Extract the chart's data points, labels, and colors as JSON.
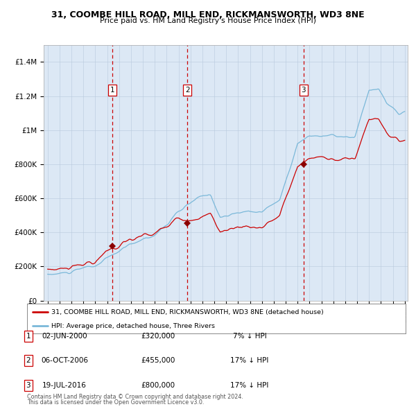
{
  "title1": "31, COOMBE HILL ROAD, MILL END, RICKMANSWORTH, WD3 8NE",
  "title2": "Price paid vs. HM Land Registry's House Price Index (HPI)",
  "legend1": "31, COOMBE HILL ROAD, MILL END, RICKMANSWORTH, WD3 8NE (detached house)",
  "legend2": "HPI: Average price, detached house, Three Rivers",
  "sale_prices": [
    320000,
    455000,
    800000
  ],
  "hpi_color": "#7ab8d9",
  "price_color": "#cc0000",
  "marker_color": "#8b0000",
  "vline_color": "#cc0000",
  "bg_color": "#dce8f5",
  "ylabel_ticks": [
    "£0",
    "£200K",
    "£400K",
    "£600K",
    "£800K",
    "£1M",
    "£1.2M",
    "£1.4M"
  ],
  "ylabel_values": [
    0,
    200000,
    400000,
    600000,
    800000,
    1000000,
    1200000,
    1400000
  ],
  "ylim": [
    0,
    1500000
  ],
  "footnote1": "Contains HM Land Registry data © Crown copyright and database right 2024.",
  "footnote2": "This data is licensed under the Open Government Licence v3.0.",
  "table_entries": [
    [
      "1",
      "02-JUN-2000",
      "£320,000",
      "7% ↓ HPI"
    ],
    [
      "2",
      "06-OCT-2006",
      "£455,000",
      "17% ↓ HPI"
    ],
    [
      "3",
      "19-JUL-2016",
      "£800,000",
      "17% ↓ HPI"
    ]
  ]
}
